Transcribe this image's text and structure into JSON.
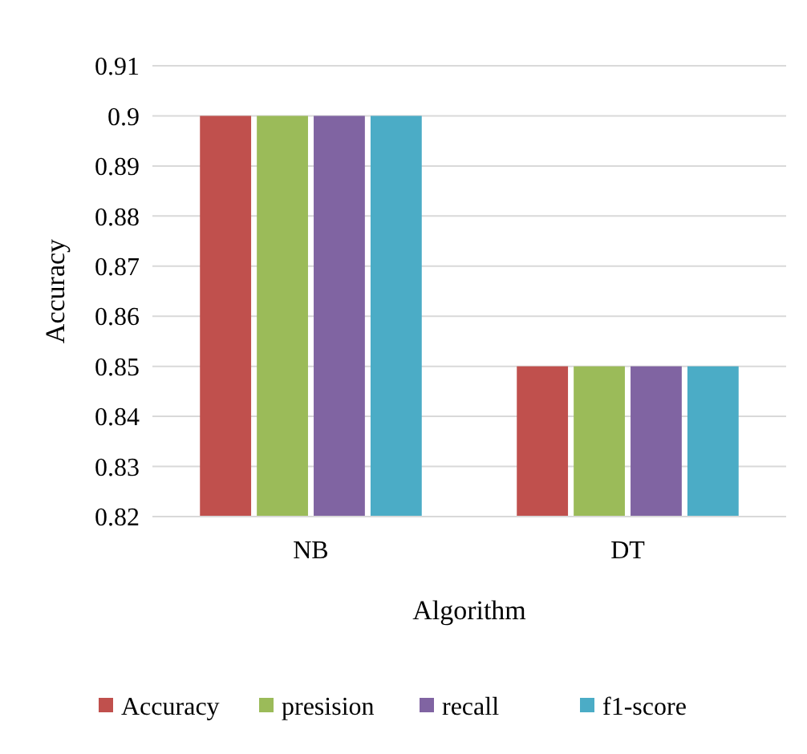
{
  "chart_data": {
    "type": "bar",
    "xlabel": "Algorithm",
    "ylabel": "Accuracy",
    "categories": [
      "NB",
      "DT"
    ],
    "series": [
      {
        "name": "Accuracy",
        "color": "#c0504d",
        "values": [
          0.9,
          0.85
        ]
      },
      {
        "name": "presision",
        "color": "#9bbb59",
        "values": [
          0.9,
          0.85
        ]
      },
      {
        "name": "recall",
        "color": "#8064a2",
        "values": [
          0.9,
          0.85
        ]
      },
      {
        "name": "f1-score",
        "color": "#4bacc6",
        "values": [
          0.9,
          0.85
        ]
      }
    ],
    "ylim": [
      0.82,
      0.91
    ],
    "yticks": [
      0.82,
      0.83,
      0.84,
      0.85,
      0.86,
      0.87,
      0.88,
      0.89,
      0.9,
      0.91
    ],
    "grid": "y",
    "legend": "bottom"
  }
}
